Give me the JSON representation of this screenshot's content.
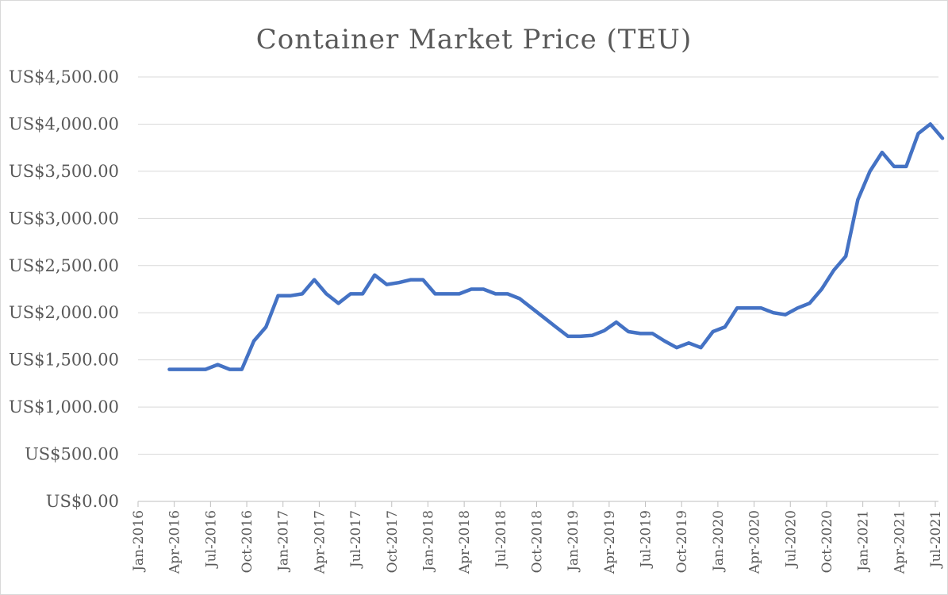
{
  "chart_data": {
    "type": "line",
    "title": "Container Market Price (TEU)",
    "xlabel": "",
    "ylabel": "",
    "ylim": [
      0,
      4500
    ],
    "ytick_values": [
      0,
      500,
      1000,
      1500,
      2000,
      2500,
      3000,
      3500,
      4000,
      4500
    ],
    "ytick_labels": [
      "US$0.00",
      "US$500.00",
      "US$1,000.00",
      "US$1,500.00",
      "US$2,000.00",
      "US$2,500.00",
      "US$3,000.00",
      "US$3,500.00",
      "US$4,000.00",
      "US$4,500.00"
    ],
    "xlim": [
      "2016-01",
      "2021-07"
    ],
    "xtick_labels": [
      "Jan-2016",
      "Apr-2016",
      "Jul-2016",
      "Oct-2016",
      "Jan-2017",
      "Apr-2017",
      "Jul-2017",
      "Oct-2017",
      "Jan-2018",
      "Apr-2018",
      "Jul-2018",
      "Oct-2018",
      "Jan-2019",
      "Apr-2019",
      "Jul-2019",
      "Oct-2019",
      "Jan-2020",
      "Apr-2020",
      "Jul-2020",
      "Oct-2020",
      "Jan-2021",
      "Apr-2021",
      "Jul-2021"
    ],
    "grid": true,
    "line_color": "#4472C4",
    "series": [
      {
        "x": [
          "2016-03",
          "2016-04",
          "2016-05",
          "2016-06",
          "2016-07",
          "2016-08",
          "2016-09",
          "2016-10",
          "2016-11",
          "2016-12",
          "2017-01",
          "2017-02",
          "2017-03",
          "2017-04",
          "2017-05",
          "2017-06",
          "2017-07",
          "2017-08",
          "2017-09",
          "2017-10",
          "2017-11",
          "2017-12",
          "2018-01",
          "2018-02",
          "2018-03",
          "2018-04",
          "2018-05",
          "2018-06",
          "2018-07",
          "2018-08",
          "2018-09",
          "2018-10",
          "2018-11",
          "2018-12",
          "2019-01",
          "2019-02",
          "2019-03",
          "2019-04",
          "2019-05",
          "2019-06",
          "2019-07",
          "2019-08",
          "2019-09",
          "2019-10",
          "2019-11",
          "2019-12",
          "2020-01",
          "2020-02",
          "2020-03",
          "2020-04",
          "2020-05",
          "2020-06",
          "2020-07",
          "2020-08",
          "2020-09",
          "2020-10",
          "2020-11",
          "2020-12",
          "2021-01",
          "2021-02",
          "2021-03",
          "2021-04",
          "2021-05",
          "2021-06",
          "2021-07"
        ],
        "values": [
          1400,
          1400,
          1400,
          1400,
          1450,
          1400,
          1400,
          1700,
          1850,
          2180,
          2180,
          2200,
          2350,
          2200,
          2100,
          2200,
          2200,
          2400,
          2300,
          2320,
          2350,
          2350,
          2200,
          2200,
          2200,
          2250,
          2250,
          2200,
          2200,
          2150,
          2050,
          1950,
          1850,
          1750,
          1750,
          1760,
          1810,
          1900,
          1800,
          1780,
          1780,
          1700,
          1630,
          1680,
          1630,
          1800,
          1850,
          2050,
          2050,
          2050,
          2000,
          1980,
          2050,
          2100,
          2250,
          2450,
          2600,
          3200,
          3500,
          3700,
          3550,
          3550,
          3900,
          4000,
          3850
        ]
      }
    ]
  }
}
